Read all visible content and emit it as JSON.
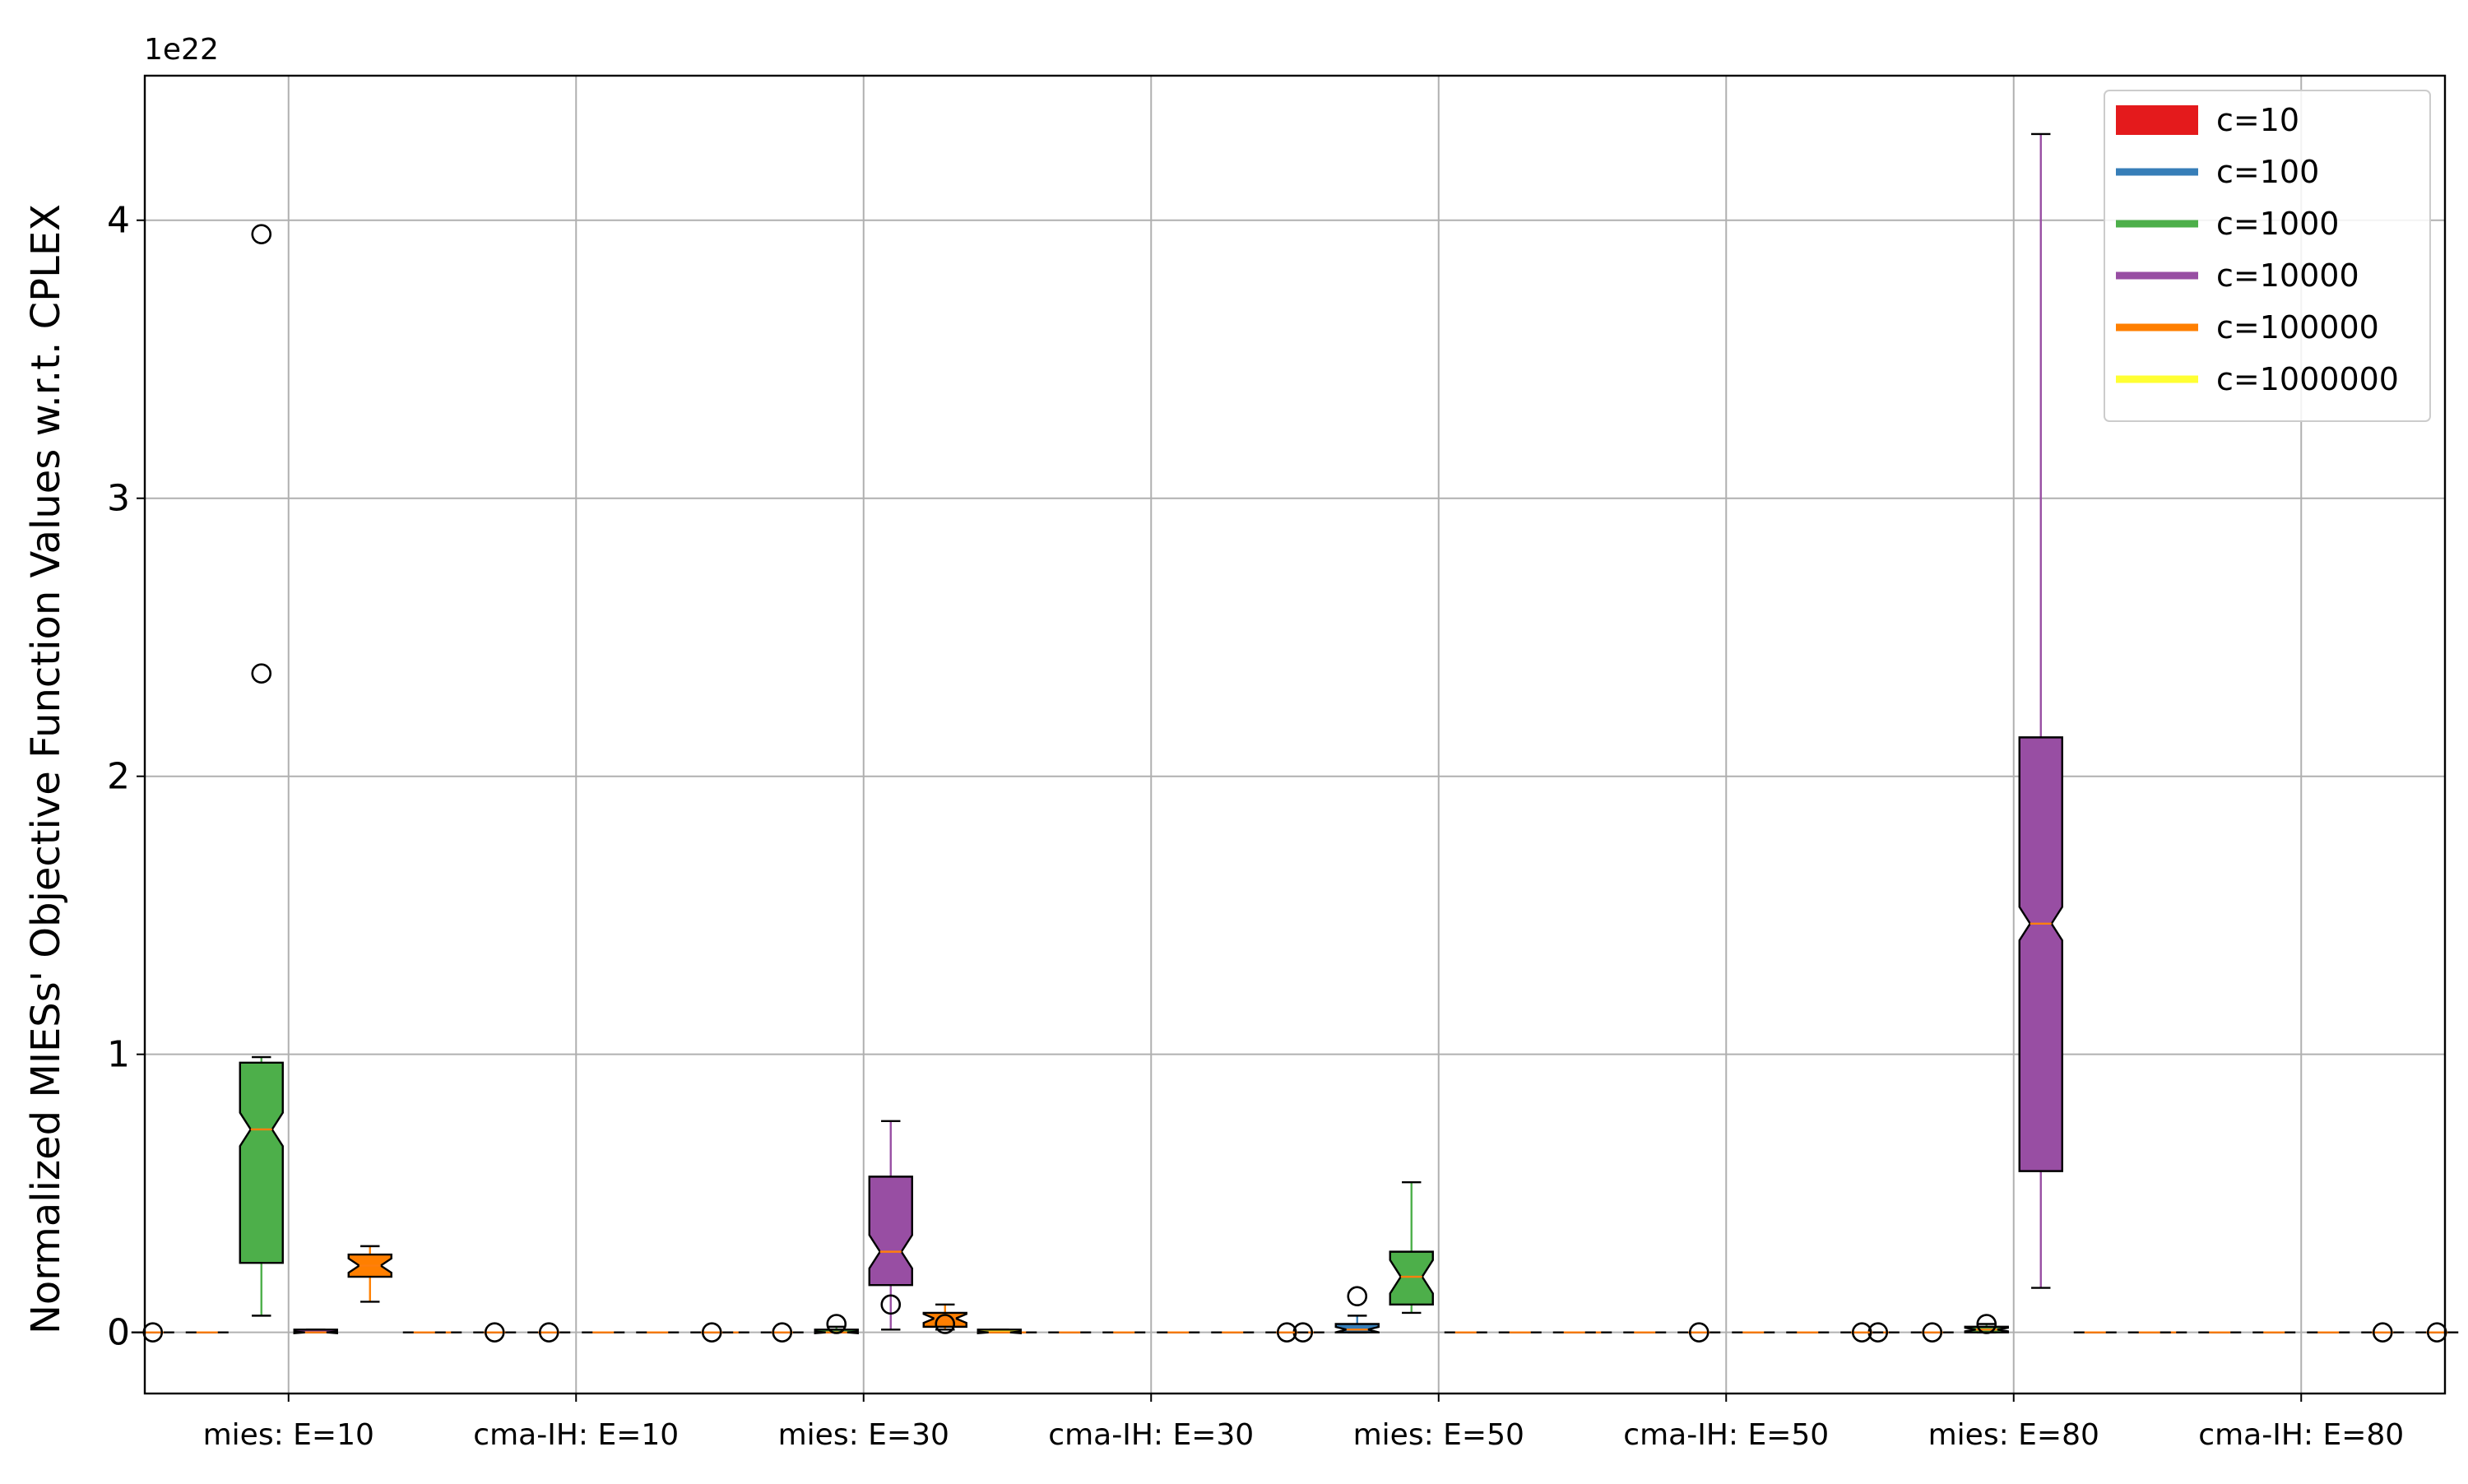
{
  "chart_data": {
    "type": "box",
    "ylabel": "Normalized MIESs' Objective Function Values w.r.t. CPLEX",
    "offset_text": "1e22",
    "ylim": [
      -0.22,
      4.52
    ],
    "y_ticks": [
      0,
      1,
      2,
      3,
      4
    ],
    "grid": true,
    "legend_position": "upper right",
    "categories": [
      "mies: E=10",
      "cma-IH: E=10",
      "mies: E=30",
      "cma-IH: E=30",
      "mies: E=50",
      "cma-IH: E=50",
      "mies: E=80",
      "cma-IH: E=80"
    ],
    "series": [
      {
        "name": "c=10",
        "color": "#e41a1c",
        "legend_style": "patch",
        "values": [
          {
            "min": 0,
            "q1": 0,
            "median": 0,
            "q3": 0,
            "max": 0,
            "outliers": [
              0
            ]
          },
          {
            "min": 0,
            "q1": 0,
            "median": 0,
            "q3": 0,
            "max": 0,
            "outliers": []
          },
          {
            "min": 0,
            "q1": 0,
            "median": 0,
            "q3": 0,
            "max": 0,
            "outliers": []
          },
          {
            "min": 0,
            "q1": 0,
            "median": 0,
            "q3": 0,
            "max": 0,
            "outliers": []
          },
          {
            "min": 0,
            "q1": 0,
            "median": 0,
            "q3": 0,
            "max": 0,
            "outliers": [
              0
            ]
          },
          {
            "min": 0,
            "q1": 0,
            "median": 0,
            "q3": 0,
            "max": 0,
            "outliers": []
          },
          {
            "min": 0,
            "q1": 0,
            "median": 0,
            "q3": 0,
            "max": 0,
            "outliers": [
              0
            ]
          },
          {
            "min": 0,
            "q1": 0,
            "median": 0,
            "q3": 0,
            "max": 0,
            "outliers": []
          }
        ]
      },
      {
        "name": "c=100",
        "color": "#377eb8",
        "legend_style": "line",
        "values": [
          {
            "min": 0,
            "q1": 0,
            "median": 0,
            "q3": 0,
            "max": 0,
            "outliers": []
          },
          {
            "min": 0,
            "q1": 0,
            "median": 0,
            "q3": 0,
            "max": 0,
            "outliers": [
              0
            ]
          },
          {
            "min": 0,
            "q1": 0,
            "median": 0,
            "q3": 0,
            "max": 0,
            "outliers": [
              0
            ]
          },
          {
            "min": 0,
            "q1": 0,
            "median": 0,
            "q3": 0,
            "max": 0,
            "outliers": []
          },
          {
            "min": 0,
            "q1": 0,
            "median": 0.01,
            "q3": 0.03,
            "max": 0.06,
            "outliers": [
              0.13
            ]
          },
          {
            "min": 0,
            "q1": 0,
            "median": 0,
            "q3": 0,
            "max": 0,
            "outliers": []
          },
          {
            "min": 0,
            "q1": 0,
            "median": 0,
            "q3": 0,
            "max": 0,
            "outliers": [
              0
            ]
          },
          {
            "min": 0,
            "q1": 0,
            "median": 0,
            "q3": 0,
            "max": 0,
            "outliers": []
          }
        ]
      },
      {
        "name": "c=1000",
        "color": "#4daf4a",
        "legend_style": "line",
        "values": [
          {
            "min": 0.06,
            "q1": 0.25,
            "median": 0.73,
            "q3": 0.97,
            "max": 0.99,
            "outliers": [
              2.37,
              3.95
            ]
          },
          {
            "min": 0,
            "q1": 0,
            "median": 0,
            "q3": 0,
            "max": 0,
            "outliers": [
              0
            ]
          },
          {
            "min": 0,
            "q1": 0,
            "median": 0,
            "q3": 0.01,
            "max": 0.02,
            "outliers": [
              0.03
            ]
          },
          {
            "min": 0,
            "q1": 0,
            "median": 0,
            "q3": 0,
            "max": 0,
            "outliers": []
          },
          {
            "min": 0.07,
            "q1": 0.1,
            "median": 0.2,
            "q3": 0.29,
            "max": 0.54,
            "outliers": []
          },
          {
            "min": 0,
            "q1": 0,
            "median": 0,
            "q3": 0,
            "max": 0,
            "outliers": [
              0
            ]
          },
          {
            "min": 0,
            "q1": 0,
            "median": 0.01,
            "q3": 0.02,
            "max": 0.03,
            "outliers": [
              0.03
            ]
          },
          {
            "min": 0,
            "q1": 0,
            "median": 0,
            "q3": 0,
            "max": 0,
            "outliers": []
          }
        ]
      },
      {
        "name": "c=10000",
        "color": "#984ea3",
        "legend_style": "line",
        "values": [
          {
            "min": 0,
            "q1": 0,
            "median": 0,
            "q3": 0.01,
            "max": 0.01,
            "outliers": []
          },
          {
            "min": 0,
            "q1": 0,
            "median": 0,
            "q3": 0,
            "max": 0,
            "outliers": []
          },
          {
            "min": 0.01,
            "q1": 0.17,
            "median": 0.29,
            "q3": 0.56,
            "max": 0.76,
            "outliers": [
              0.1
            ]
          },
          {
            "min": 0,
            "q1": 0,
            "median": 0,
            "q3": 0,
            "max": 0,
            "outliers": []
          },
          {
            "min": 0,
            "q1": 0,
            "median": 0,
            "q3": 0,
            "max": 0,
            "outliers": []
          },
          {
            "min": 0,
            "q1": 0,
            "median": 0,
            "q3": 0,
            "max": 0,
            "outliers": []
          },
          {
            "min": 0.16,
            "q1": 0.58,
            "median": 1.47,
            "q3": 2.14,
            "max": 4.31,
            "outliers": []
          },
          {
            "min": 0,
            "q1": 0,
            "median": 0,
            "q3": 0,
            "max": 0,
            "outliers": []
          }
        ]
      },
      {
        "name": "c=100000",
        "color": "#ff7f00",
        "legend_style": "line",
        "values": [
          {
            "min": 0.11,
            "q1": 0.2,
            "median": 0.24,
            "q3": 0.28,
            "max": 0.31,
            "outliers": []
          },
          {
            "min": 0,
            "q1": 0,
            "median": 0,
            "q3": 0,
            "max": 0,
            "outliers": []
          },
          {
            "min": 0.01,
            "q1": 0.02,
            "median": 0.05,
            "q3": 0.07,
            "max": 0.1,
            "outliers": [
              0.03
            ]
          },
          {
            "min": 0,
            "q1": 0,
            "median": 0,
            "q3": 0,
            "max": 0,
            "outliers": []
          },
          {
            "min": 0,
            "q1": 0,
            "median": 0,
            "q3": 0,
            "max": 0,
            "outliers": []
          },
          {
            "min": 0,
            "q1": 0,
            "median": 0,
            "q3": 0,
            "max": 0,
            "outliers": []
          },
          {
            "min": 0,
            "q1": 0,
            "median": 0,
            "q3": 0,
            "max": 0,
            "outliers": []
          },
          {
            "min": 0,
            "q1": 0,
            "median": 0,
            "q3": 0,
            "max": 0,
            "outliers": [
              0
            ]
          }
        ]
      },
      {
        "name": "c=1000000",
        "color": "#ffff33",
        "legend_style": "line",
        "values": [
          {
            "min": 0,
            "q1": 0,
            "median": 0,
            "q3": 0,
            "max": 0,
            "outliers": []
          },
          {
            "min": 0,
            "q1": 0,
            "median": 0,
            "q3": 0,
            "max": 0,
            "outliers": [
              0
            ]
          },
          {
            "min": 0,
            "q1": 0,
            "median": 0,
            "q3": 0.01,
            "max": 0.01,
            "outliers": []
          },
          {
            "min": 0,
            "q1": 0,
            "median": 0,
            "q3": 0,
            "max": 0,
            "outliers": [
              0
            ]
          },
          {
            "min": 0,
            "q1": 0,
            "median": 0,
            "q3": 0,
            "max": 0,
            "outliers": []
          },
          {
            "min": 0,
            "q1": 0,
            "median": 0,
            "q3": 0,
            "max": 0,
            "outliers": [
              0
            ]
          },
          {
            "min": 0,
            "q1": 0,
            "median": 0,
            "q3": 0,
            "max": 0,
            "outliers": []
          },
          {
            "min": 0,
            "q1": 0,
            "median": 0,
            "q3": 0,
            "max": 0,
            "outliers": [
              0
            ]
          }
        ]
      }
    ]
  }
}
